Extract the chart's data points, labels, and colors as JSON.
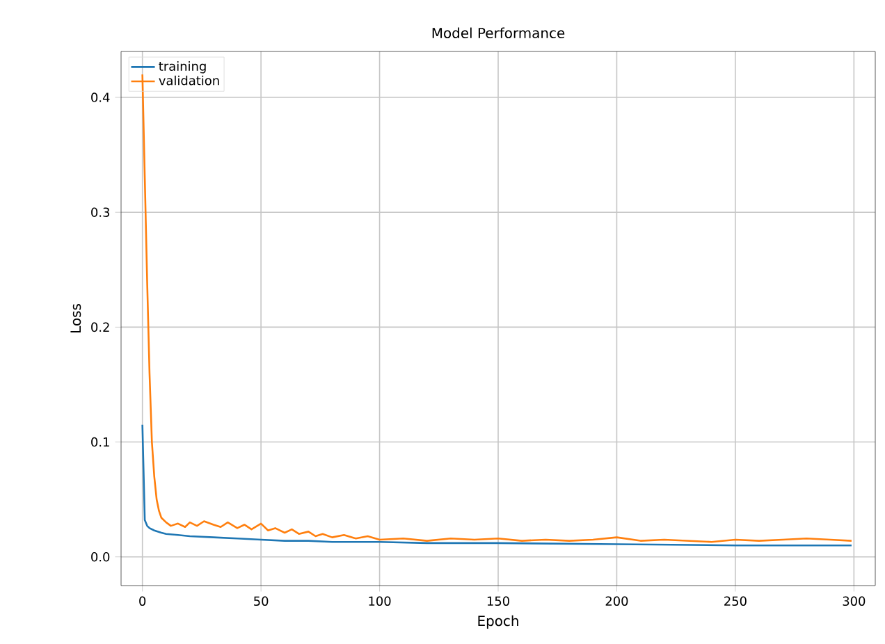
{
  "chart_data": {
    "type": "line",
    "title": "Model Performance",
    "xlabel": "Epoch",
    "ylabel": "Loss",
    "xlim": [
      -9,
      309
    ],
    "ylim": [
      -0.025,
      0.44
    ],
    "xticks": [
      0,
      50,
      100,
      150,
      200,
      250,
      300
    ],
    "yticks": [
      {
        "value": 0,
        "label": "0.0"
      },
      0.1,
      0.2,
      0.3,
      0.4
    ],
    "grid": true,
    "legend": "top left",
    "line_style": "solid",
    "marker": "none",
    "series": [
      {
        "name": "training",
        "color": "#1f77b4",
        "x": [
          0,
          1,
          2,
          3,
          5,
          8,
          10,
          15,
          20,
          30,
          40,
          50,
          60,
          70,
          80,
          100,
          120,
          150,
          200,
          250,
          299
        ],
        "values": [
          0.115,
          0.032,
          0.027,
          0.025,
          0.023,
          0.021,
          0.02,
          0.019,
          0.018,
          0.017,
          0.016,
          0.015,
          0.014,
          0.014,
          0.013,
          0.013,
          0.012,
          0.012,
          0.011,
          0.01,
          0.01
        ]
      },
      {
        "name": "validation",
        "color": "#ff7f0e",
        "x": [
          0,
          1,
          2,
          3,
          4,
          5,
          6,
          7,
          8,
          10,
          12,
          15,
          18,
          20,
          23,
          26,
          30,
          33,
          36,
          40,
          43,
          46,
          50,
          53,
          56,
          60,
          63,
          66,
          70,
          73,
          76,
          80,
          85,
          90,
          95,
          100,
          110,
          120,
          130,
          140,
          150,
          160,
          170,
          180,
          190,
          200,
          210,
          220,
          230,
          240,
          250,
          260,
          270,
          280,
          290,
          299
        ],
        "values": [
          0.42,
          0.33,
          0.24,
          0.16,
          0.1,
          0.07,
          0.05,
          0.04,
          0.034,
          0.03,
          0.027,
          0.029,
          0.026,
          0.03,
          0.027,
          0.031,
          0.028,
          0.026,
          0.03,
          0.025,
          0.028,
          0.024,
          0.029,
          0.023,
          0.025,
          0.021,
          0.024,
          0.02,
          0.022,
          0.018,
          0.02,
          0.017,
          0.019,
          0.016,
          0.018,
          0.015,
          0.016,
          0.014,
          0.016,
          0.015,
          0.016,
          0.014,
          0.015,
          0.014,
          0.015,
          0.017,
          0.014,
          0.015,
          0.014,
          0.013,
          0.015,
          0.014,
          0.015,
          0.016,
          0.015,
          0.014
        ]
      }
    ]
  }
}
